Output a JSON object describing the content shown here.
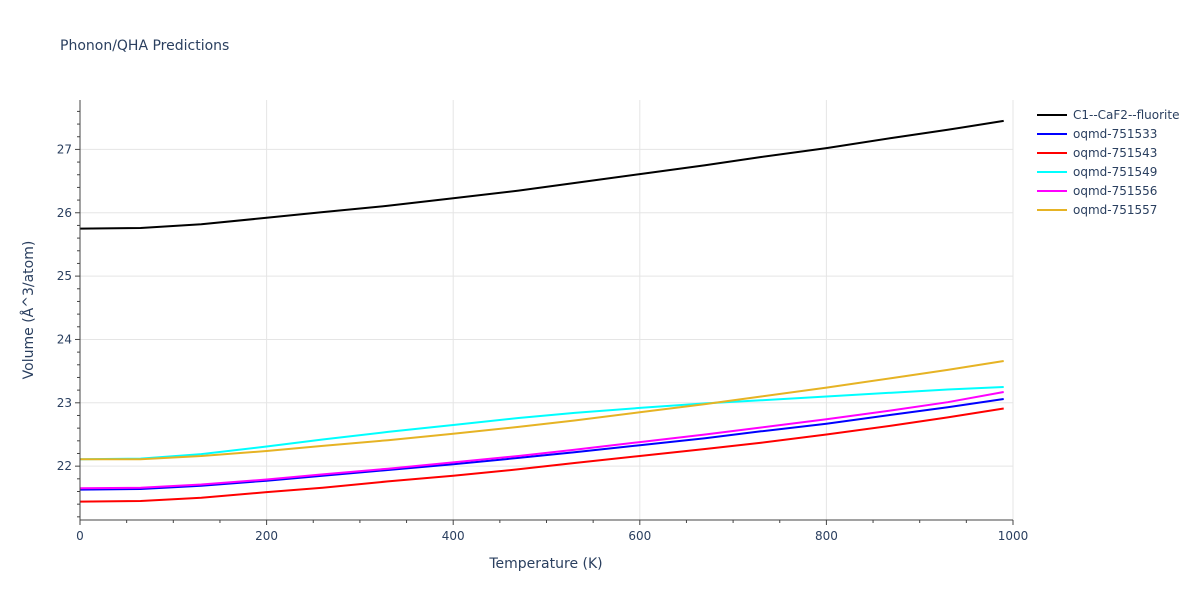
{
  "chart_data": {
    "type": "line",
    "title": "Phonon/QHA Predictions",
    "xlabel": "Temperature (K)",
    "ylabel": "Volume (Å^3/atom)",
    "xlim": [
      0,
      1000
    ],
    "ylim": [
      21.15,
      27.78
    ],
    "xticks": [
      0,
      200,
      400,
      600,
      800,
      1000
    ],
    "yticks": [
      22,
      23,
      24,
      25,
      26,
      27
    ],
    "grid": true,
    "legend_position": "top-right",
    "x": [
      0,
      65,
      130,
      200,
      260,
      330,
      400,
      470,
      530,
      600,
      670,
      730,
      800,
      870,
      930,
      990
    ],
    "series": [
      {
        "name": "C1--CaF2--fluorite",
        "color": "#000000",
        "values": [
          25.75,
          25.76,
          25.82,
          25.92,
          26.01,
          26.11,
          26.23,
          26.35,
          26.47,
          26.61,
          26.75,
          26.88,
          27.02,
          27.18,
          27.31,
          27.45
        ]
      },
      {
        "name": "oqmd-751533",
        "color": "#0000ff",
        "values": [
          21.63,
          21.64,
          21.69,
          21.77,
          21.85,
          21.94,
          22.03,
          22.13,
          22.22,
          22.33,
          22.44,
          22.55,
          22.67,
          22.81,
          22.93,
          23.06
        ]
      },
      {
        "name": "oqmd-751543",
        "color": "#ff0000",
        "values": [
          21.44,
          21.45,
          21.5,
          21.59,
          21.66,
          21.76,
          21.85,
          21.95,
          22.05,
          22.16,
          22.27,
          22.37,
          22.5,
          22.64,
          22.77,
          22.91
        ]
      },
      {
        "name": "oqmd-751549",
        "color": "#00ffff",
        "values": [
          22.11,
          22.12,
          22.19,
          22.31,
          22.42,
          22.54,
          22.65,
          22.76,
          22.84,
          22.92,
          22.99,
          23.04,
          23.1,
          23.16,
          23.21,
          23.25
        ]
      },
      {
        "name": "oqmd-751556",
        "color": "#ff00ff",
        "values": [
          21.65,
          21.66,
          21.71,
          21.79,
          21.87,
          21.96,
          22.06,
          22.16,
          22.26,
          22.38,
          22.5,
          22.61,
          22.74,
          22.88,
          23.01,
          23.17
        ]
      },
      {
        "name": "oqmd-751557",
        "color": "#e6b324",
        "values": [
          22.11,
          22.11,
          22.16,
          22.24,
          22.32,
          22.41,
          22.51,
          22.62,
          22.72,
          22.85,
          22.98,
          23.1,
          23.24,
          23.39,
          23.52,
          23.66
        ]
      }
    ]
  }
}
